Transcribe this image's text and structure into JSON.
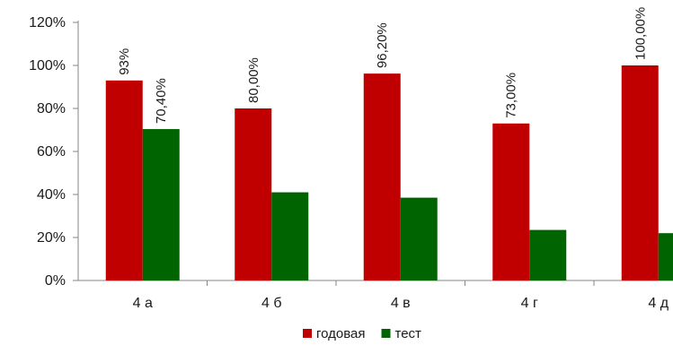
{
  "chart_data": {
    "type": "bar",
    "categories": [
      "4 а",
      "4 б",
      "4 в",
      "4 г",
      "4 д"
    ],
    "series": [
      {
        "name": "годовая",
        "color": "#C00000",
        "values": [
          93,
          80,
          96.2,
          73,
          100
        ],
        "data_labels": [
          "93%",
          "80,00%",
          "96,20%",
          "73,00%",
          "100,00%"
        ]
      },
      {
        "name": "тест",
        "color": "#006400",
        "values": [
          70.4,
          41,
          38.5,
          23.5,
          22
        ],
        "data_labels": [
          "70,40%",
          "",
          "",
          "",
          ""
        ]
      }
    ],
    "y_ticks": [
      "0%",
      "20%",
      "40%",
      "60%",
      "80%",
      "100%",
      "120%"
    ],
    "ylim": [
      0,
      120
    ],
    "title": "",
    "xlabel": "",
    "ylabel": "",
    "grid": false,
    "legend": "bottom"
  }
}
